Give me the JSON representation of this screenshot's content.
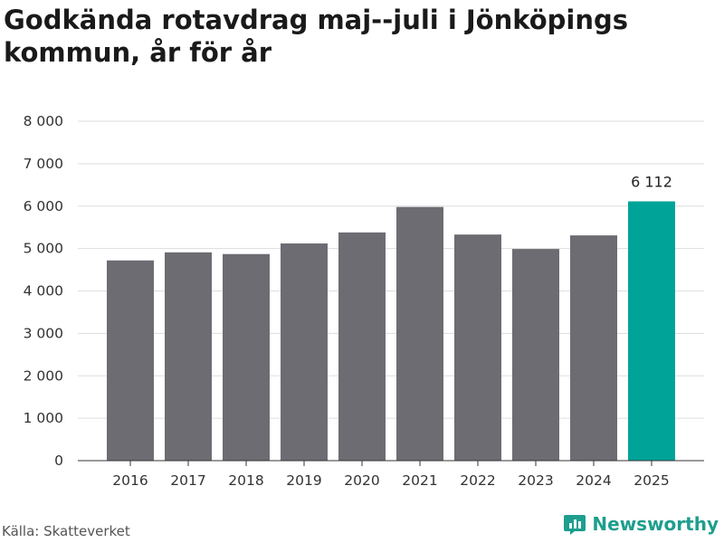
{
  "title": "Godkända rotavdrag maj--juli i Jönköpings kommun, år för år",
  "source": "Källa: Skatteverket",
  "brand": {
    "name": "Newsworthy",
    "logo_icon": "bar-chart-logo-icon",
    "color": "#1e9e8e"
  },
  "colors": {
    "bar": "#6d6c72",
    "highlight": "#00a398",
    "grid": "#dddddd"
  },
  "chart_data": {
    "type": "bar",
    "title": "Godkända rotavdrag maj--juli i Jönköpings kommun, år för år",
    "xlabel": "",
    "ylabel": "",
    "categories": [
      "2016",
      "2017",
      "2018",
      "2019",
      "2020",
      "2021",
      "2022",
      "2023",
      "2024",
      "2025"
    ],
    "values": [
      4720,
      4910,
      4870,
      5120,
      5380,
      5980,
      5330,
      4990,
      5310,
      6112
    ],
    "ylim": [
      0,
      8000
    ],
    "yticks": [
      0,
      1000,
      2000,
      3000,
      4000,
      5000,
      6000,
      7000,
      8000
    ],
    "ytick_labels": [
      "0",
      "1 000",
      "2 000",
      "3 000",
      "4 000",
      "5 000",
      "6 000",
      "7 000",
      "8 000"
    ],
    "highlight_index": 9,
    "data_labels": [
      {
        "index": 9,
        "text": "6 112"
      }
    ],
    "grid": true,
    "legend": "none"
  }
}
